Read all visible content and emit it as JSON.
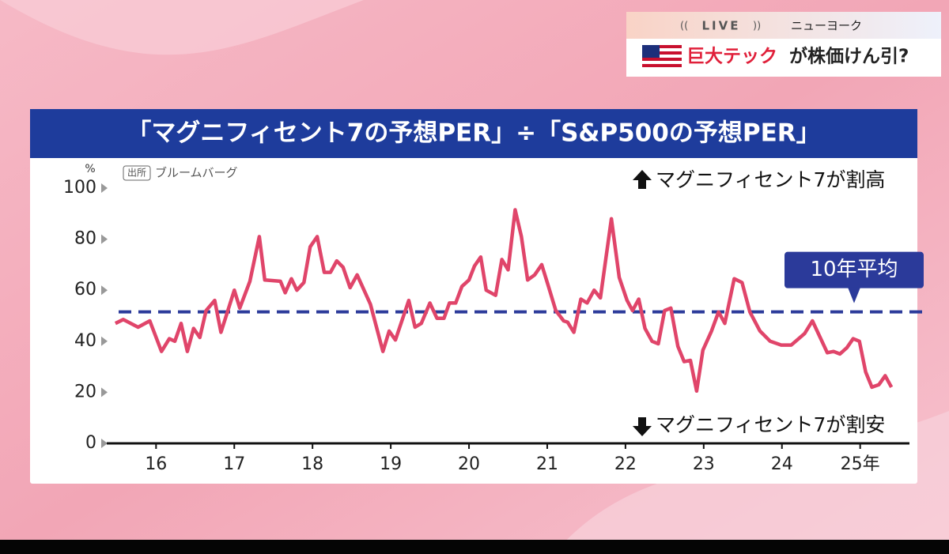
{
  "overlay": {
    "live": "LIVE",
    "location": "ニューヨーク",
    "headline_accent": "巨大テック",
    "headline_rest": "が株価けん引?"
  },
  "chart_data": {
    "type": "line",
    "title": "「マグニフィセント7の予想PER」÷「S&P500の予想PER」",
    "y_unit": "%",
    "source_tag": "出所",
    "source": "ブルームバーグ",
    "annotations": [
      "マグニフィセント7が割高",
      "マグニフィセント7が割安"
    ],
    "color": "#e0456a",
    "x": [
      15.48,
      15.58,
      15.77,
      15.92,
      16.07,
      16.17,
      16.24,
      16.32,
      16.4,
      16.48,
      16.56,
      16.64,
      16.75,
      16.83,
      17.0,
      17.07,
      17.2,
      17.32,
      17.39,
      17.59,
      17.65,
      17.73,
      17.8,
      17.89,
      17.97,
      18.06,
      18.15,
      18.23,
      18.31,
      18.39,
      18.48,
      18.57,
      18.74,
      18.9,
      18.98,
      19.06,
      19.23,
      19.31,
      19.39,
      19.5,
      19.59,
      19.68,
      19.75,
      19.83,
      19.91,
      20.0,
      20.07,
      20.15,
      20.22,
      20.34,
      20.42,
      20.5,
      20.59,
      20.67,
      20.75,
      20.84,
      20.93,
      21.01,
      21.11,
      21.21,
      21.26,
      21.34,
      21.43,
      21.51,
      21.6,
      21.68,
      21.82,
      21.92,
      22.02,
      22.09,
      22.17,
      22.25,
      22.34,
      22.42,
      22.5,
      22.58,
      22.67,
      22.75,
      22.83,
      22.91,
      22.99,
      23.1,
      23.19,
      23.27,
      23.39,
      23.49,
      23.59,
      23.72,
      23.85,
      23.99,
      24.12,
      24.29,
      24.39,
      24.58,
      24.66,
      24.74,
      24.83,
      24.91,
      24.99,
      25.07,
      25.15,
      25.24,
      25.32,
      25.4
    ],
    "values": [
      47,
      48.5,
      45.5,
      48,
      36,
      41,
      40,
      47,
      36,
      45,
      41.5,
      52,
      56,
      43.5,
      60,
      53,
      63.5,
      81,
      64,
      63.5,
      59,
      64.5,
      60,
      63,
      77,
      81,
      67,
      67,
      71.5,
      69,
      61,
      66,
      54.5,
      36,
      44,
      40.5,
      56,
      45.5,
      47,
      55,
      49,
      49,
      55,
      55,
      61.5,
      64,
      69.5,
      73,
      60,
      58,
      72,
      68,
      91.5,
      81,
      64,
      66,
      70,
      62,
      52,
      48,
      47.5,
      43.5,
      56.5,
      55,
      60,
      57,
      88,
      65,
      56,
      52,
      56.5,
      45,
      40,
      39,
      52,
      53,
      38,
      32,
      32.5,
      20.5,
      36.5,
      44,
      51.5,
      47,
      64.5,
      63,
      51.5,
      44,
      40,
      38.5,
      38.5,
      43,
      48,
      35.5,
      36,
      35,
      37.5,
      41,
      40,
      28,
      22,
      23,
      26.5,
      22
    ],
    "xlim": [
      15.37,
      25.63
    ],
    "ylim": [
      0,
      100
    ],
    "xticks": [
      16,
      17,
      18,
      19,
      20,
      21,
      22,
      23,
      24,
      {
        "value": 25,
        "label": "25年"
      }
    ],
    "yticks": [
      0,
      20,
      40,
      60,
      80,
      100
    ],
    "reference_lines": [
      {
        "value": 51.5,
        "label": "10年平均",
        "color": "#2b3a9a"
      }
    ]
  }
}
